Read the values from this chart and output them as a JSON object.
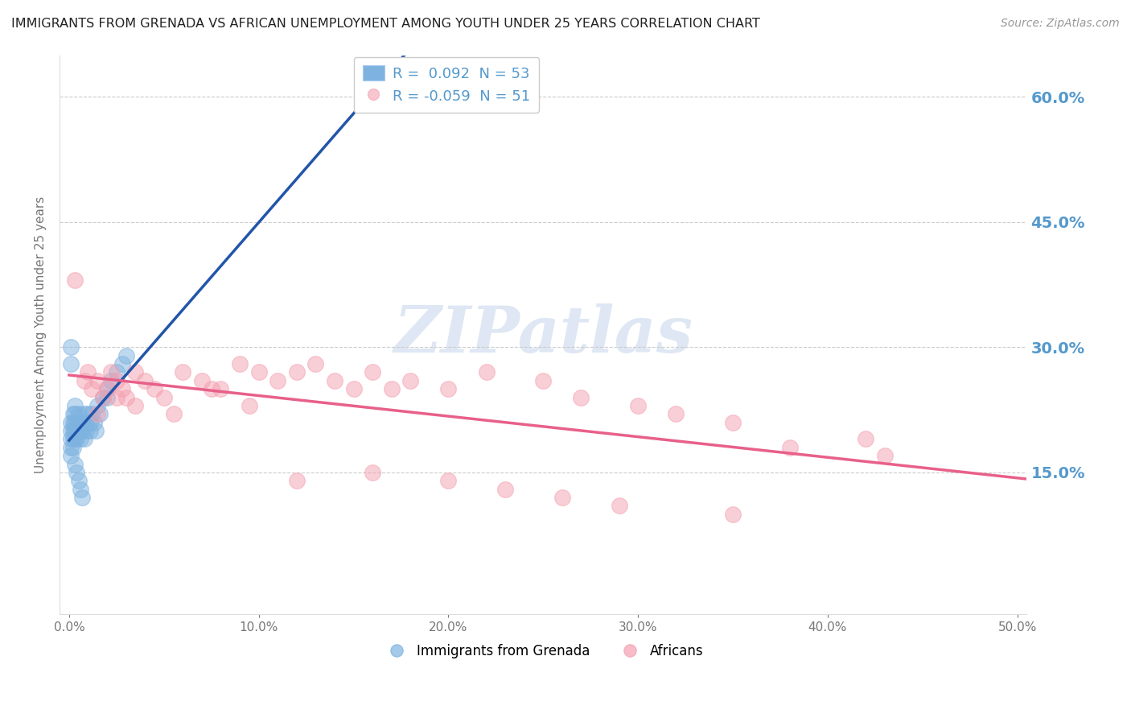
{
  "title": "IMMIGRANTS FROM GRENADA VS AFRICAN UNEMPLOYMENT AMONG YOUTH UNDER 25 YEARS CORRELATION CHART",
  "source": "Source: ZipAtlas.com",
  "ylabel": "Unemployment Among Youth under 25 years",
  "xlim": [
    -0.005,
    0.505
  ],
  "ylim": [
    -0.02,
    0.65
  ],
  "xtick_positions": [
    0.0,
    0.1,
    0.2,
    0.3,
    0.4,
    0.5
  ],
  "xtick_labels": [
    "0.0%",
    "10.0%",
    "20.0%",
    "30.0%",
    "40.0%",
    "50.0%"
  ],
  "ytick_positions": [
    0.15,
    0.3,
    0.45,
    0.6
  ],
  "ytick_labels": [
    "15.0%",
    "30.0%",
    "45.0%",
    "60.0%"
  ],
  "watermark": "ZIPatlas",
  "legend_r1": "R =  0.092  N = 53",
  "legend_r2": "R = -0.059  N = 51",
  "blue_color": "#7EB3E0",
  "pink_color": "#F4A0B0",
  "trend_blue_solid": "#2255AA",
  "trend_blue_dash": "#7EB3E0",
  "trend_pink_solid": "#E8608A",
  "background_color": "#FFFFFF",
  "grid_color": "#CCCCCC",
  "right_label_color": "#5599CC",
  "blue_x": [
    0.001,
    0.001,
    0.001,
    0.001,
    0.002,
    0.002,
    0.002,
    0.002,
    0.003,
    0.003,
    0.003,
    0.003,
    0.003,
    0.004,
    0.004,
    0.004,
    0.004,
    0.005,
    0.005,
    0.005,
    0.006,
    0.006,
    0.006,
    0.007,
    0.007,
    0.008,
    0.008,
    0.009,
    0.009,
    0.01,
    0.011,
    0.011,
    0.012,
    0.013,
    0.014,
    0.015,
    0.016,
    0.018,
    0.02,
    0.022,
    0.025,
    0.028,
    0.03,
    0.001,
    0.002,
    0.003,
    0.004,
    0.005,
    0.006,
    0.007,
    0.02,
    0.001,
    0.001
  ],
  "blue_y": [
    0.2,
    0.21,
    0.19,
    0.18,
    0.22,
    0.2,
    0.21,
    0.19,
    0.21,
    0.22,
    0.2,
    0.19,
    0.23,
    0.2,
    0.21,
    0.19,
    0.2,
    0.21,
    0.2,
    0.22,
    0.2,
    0.21,
    0.19,
    0.21,
    0.2,
    0.22,
    0.19,
    0.21,
    0.2,
    0.22,
    0.21,
    0.2,
    0.22,
    0.21,
    0.2,
    0.23,
    0.22,
    0.24,
    0.25,
    0.26,
    0.27,
    0.28,
    0.29,
    0.17,
    0.18,
    0.16,
    0.15,
    0.14,
    0.13,
    0.12,
    0.24,
    0.3,
    0.28
  ],
  "pink_x": [
    0.008,
    0.01,
    0.012,
    0.015,
    0.018,
    0.02,
    0.022,
    0.025,
    0.028,
    0.03,
    0.035,
    0.04,
    0.045,
    0.05,
    0.06,
    0.07,
    0.08,
    0.09,
    0.1,
    0.11,
    0.12,
    0.13,
    0.14,
    0.15,
    0.16,
    0.17,
    0.18,
    0.2,
    0.22,
    0.25,
    0.27,
    0.3,
    0.32,
    0.35,
    0.38,
    0.42,
    0.015,
    0.025,
    0.035,
    0.055,
    0.075,
    0.095,
    0.12,
    0.16,
    0.2,
    0.23,
    0.26,
    0.29,
    0.35,
    0.43,
    0.003
  ],
  "pink_y": [
    0.26,
    0.27,
    0.25,
    0.26,
    0.24,
    0.25,
    0.27,
    0.26,
    0.25,
    0.24,
    0.27,
    0.26,
    0.25,
    0.24,
    0.27,
    0.26,
    0.25,
    0.28,
    0.27,
    0.26,
    0.27,
    0.28,
    0.26,
    0.25,
    0.27,
    0.25,
    0.26,
    0.25,
    0.27,
    0.26,
    0.24,
    0.23,
    0.22,
    0.21,
    0.18,
    0.19,
    0.22,
    0.24,
    0.23,
    0.22,
    0.25,
    0.23,
    0.14,
    0.15,
    0.14,
    0.13,
    0.12,
    0.11,
    0.1,
    0.17,
    0.38
  ]
}
